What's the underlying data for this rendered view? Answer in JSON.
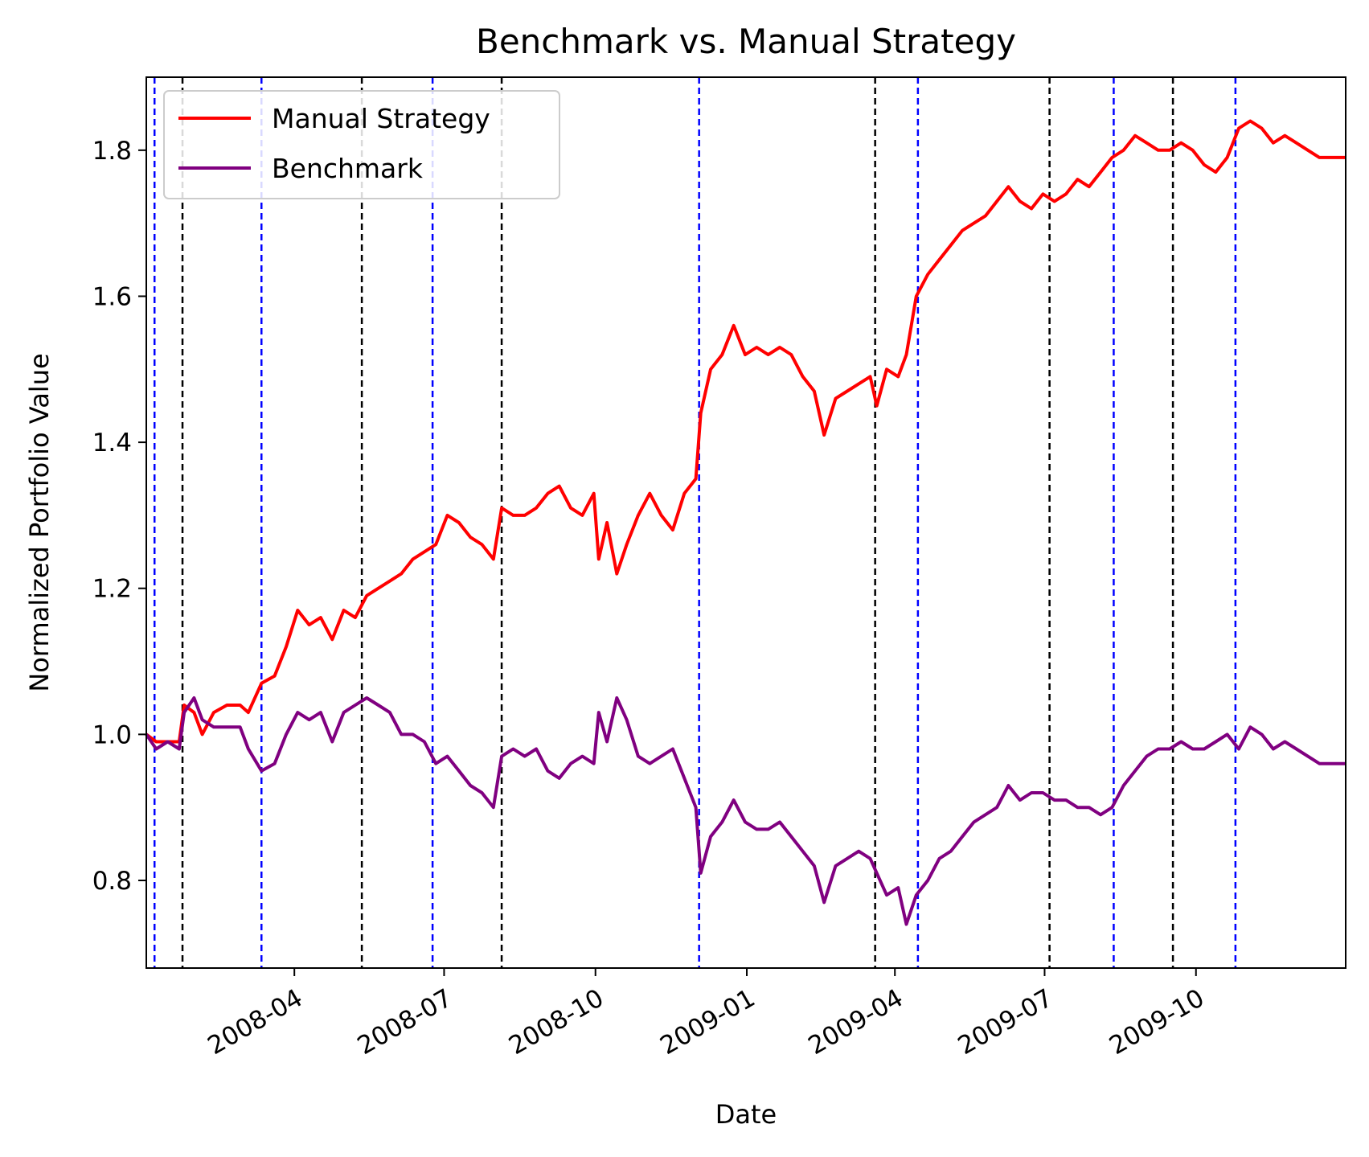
{
  "chart_data": {
    "type": "line",
    "title": "Benchmark vs. Manual Strategy",
    "xlabel": "Date",
    "ylabel": "Normalized Portfolio Value",
    "xlim": [
      "2008-01-02",
      "2009-12-31"
    ],
    "ylim": [
      0.68,
      1.9
    ],
    "grid": false,
    "legend_position": "top-left",
    "x_ticks": [
      "2008-04",
      "2008-07",
      "2008-10",
      "2009-01",
      "2009-04",
      "2009-07",
      "2009-10"
    ],
    "y_ticks": [
      "0.8",
      "1.0",
      "1.2",
      "1.4",
      "1.6",
      "1.8"
    ],
    "series": [
      {
        "name": "Manual Strategy",
        "color": "#ff0000",
        "points": [
          [
            "2008-01-02",
            1.0
          ],
          [
            "2008-01-08",
            0.99
          ],
          [
            "2008-01-15",
            0.99
          ],
          [
            "2008-01-22",
            0.99
          ],
          [
            "2008-01-25",
            1.04
          ],
          [
            "2008-01-31",
            1.03
          ],
          [
            "2008-02-05",
            1.0
          ],
          [
            "2008-02-12",
            1.03
          ],
          [
            "2008-02-20",
            1.04
          ],
          [
            "2008-02-28",
            1.04
          ],
          [
            "2008-03-04",
            1.03
          ],
          [
            "2008-03-12",
            1.07
          ],
          [
            "2008-03-20",
            1.08
          ],
          [
            "2008-03-27",
            1.12
          ],
          [
            "2008-04-03",
            1.17
          ],
          [
            "2008-04-10",
            1.15
          ],
          [
            "2008-04-17",
            1.16
          ],
          [
            "2008-04-24",
            1.13
          ],
          [
            "2008-05-01",
            1.17
          ],
          [
            "2008-05-08",
            1.16
          ],
          [
            "2008-05-15",
            1.19
          ],
          [
            "2008-05-22",
            1.2
          ],
          [
            "2008-05-29",
            1.21
          ],
          [
            "2008-06-05",
            1.22
          ],
          [
            "2008-06-12",
            1.24
          ],
          [
            "2008-06-19",
            1.25
          ],
          [
            "2008-06-26",
            1.26
          ],
          [
            "2008-07-03",
            1.3
          ],
          [
            "2008-07-10",
            1.29
          ],
          [
            "2008-07-17",
            1.27
          ],
          [
            "2008-07-24",
            1.26
          ],
          [
            "2008-07-31",
            1.24
          ],
          [
            "2008-08-05",
            1.31
          ],
          [
            "2008-08-12",
            1.3
          ],
          [
            "2008-08-19",
            1.3
          ],
          [
            "2008-08-26",
            1.31
          ],
          [
            "2008-09-02",
            1.33
          ],
          [
            "2008-09-09",
            1.34
          ],
          [
            "2008-09-16",
            1.31
          ],
          [
            "2008-09-23",
            1.3
          ],
          [
            "2008-09-30",
            1.33
          ],
          [
            "2008-10-03",
            1.24
          ],
          [
            "2008-10-08",
            1.29
          ],
          [
            "2008-10-14",
            1.22
          ],
          [
            "2008-10-20",
            1.26
          ],
          [
            "2008-10-27",
            1.3
          ],
          [
            "2008-11-03",
            1.33
          ],
          [
            "2008-11-10",
            1.3
          ],
          [
            "2008-11-17",
            1.28
          ],
          [
            "2008-11-24",
            1.33
          ],
          [
            "2008-12-01",
            1.35
          ],
          [
            "2008-12-04",
            1.44
          ],
          [
            "2008-12-10",
            1.5
          ],
          [
            "2008-12-17",
            1.52
          ],
          [
            "2008-12-24",
            1.56
          ],
          [
            "2008-12-31",
            1.52
          ],
          [
            "2009-01-07",
            1.53
          ],
          [
            "2009-01-14",
            1.52
          ],
          [
            "2009-01-21",
            1.53
          ],
          [
            "2009-01-28",
            1.52
          ],
          [
            "2009-02-04",
            1.49
          ],
          [
            "2009-02-11",
            1.47
          ],
          [
            "2009-02-17",
            1.41
          ],
          [
            "2009-02-24",
            1.46
          ],
          [
            "2009-03-03",
            1.47
          ],
          [
            "2009-03-10",
            1.48
          ],
          [
            "2009-03-17",
            1.49
          ],
          [
            "2009-03-21",
            1.45
          ],
          [
            "2009-03-27",
            1.5
          ],
          [
            "2009-04-03",
            1.49
          ],
          [
            "2009-04-08",
            1.52
          ],
          [
            "2009-04-14",
            1.6
          ],
          [
            "2009-04-21",
            1.63
          ],
          [
            "2009-04-28",
            1.65
          ],
          [
            "2009-05-05",
            1.67
          ],
          [
            "2009-05-12",
            1.69
          ],
          [
            "2009-05-19",
            1.7
          ],
          [
            "2009-05-26",
            1.71
          ],
          [
            "2009-06-02",
            1.73
          ],
          [
            "2009-06-09",
            1.75
          ],
          [
            "2009-06-16",
            1.73
          ],
          [
            "2009-06-23",
            1.72
          ],
          [
            "2009-06-30",
            1.74
          ],
          [
            "2009-07-07",
            1.73
          ],
          [
            "2009-07-14",
            1.74
          ],
          [
            "2009-07-21",
            1.76
          ],
          [
            "2009-07-28",
            1.75
          ],
          [
            "2009-08-04",
            1.77
          ],
          [
            "2009-08-11",
            1.79
          ],
          [
            "2009-08-18",
            1.8
          ],
          [
            "2009-08-25",
            1.82
          ],
          [
            "2009-09-01",
            1.81
          ],
          [
            "2009-09-08",
            1.8
          ],
          [
            "2009-09-15",
            1.8
          ],
          [
            "2009-09-22",
            1.81
          ],
          [
            "2009-09-29",
            1.8
          ],
          [
            "2009-10-06",
            1.78
          ],
          [
            "2009-10-13",
            1.77
          ],
          [
            "2009-10-20",
            1.79
          ],
          [
            "2009-10-27",
            1.83
          ],
          [
            "2009-11-03",
            1.84
          ],
          [
            "2009-11-10",
            1.83
          ],
          [
            "2009-11-17",
            1.81
          ],
          [
            "2009-11-24",
            1.82
          ],
          [
            "2009-12-01",
            1.81
          ],
          [
            "2009-12-08",
            1.8
          ],
          [
            "2009-12-15",
            1.79
          ],
          [
            "2009-12-22",
            1.79
          ],
          [
            "2009-12-31",
            1.79
          ]
        ]
      },
      {
        "name": "Benchmark",
        "color": "#800080",
        "points": [
          [
            "2008-01-02",
            1.0
          ],
          [
            "2008-01-08",
            0.98
          ],
          [
            "2008-01-15",
            0.99
          ],
          [
            "2008-01-22",
            0.98
          ],
          [
            "2008-01-25",
            1.03
          ],
          [
            "2008-01-31",
            1.05
          ],
          [
            "2008-02-05",
            1.02
          ],
          [
            "2008-02-12",
            1.01
          ],
          [
            "2008-02-20",
            1.01
          ],
          [
            "2008-02-28",
            1.01
          ],
          [
            "2008-03-04",
            0.98
          ],
          [
            "2008-03-12",
            0.95
          ],
          [
            "2008-03-20",
            0.96
          ],
          [
            "2008-03-27",
            1.0
          ],
          [
            "2008-04-03",
            1.03
          ],
          [
            "2008-04-10",
            1.02
          ],
          [
            "2008-04-17",
            1.03
          ],
          [
            "2008-04-24",
            0.99
          ],
          [
            "2008-05-01",
            1.03
          ],
          [
            "2008-05-08",
            1.04
          ],
          [
            "2008-05-15",
            1.05
          ],
          [
            "2008-05-22",
            1.04
          ],
          [
            "2008-05-29",
            1.03
          ],
          [
            "2008-06-05",
            1.0
          ],
          [
            "2008-06-12",
            1.0
          ],
          [
            "2008-06-19",
            0.99
          ],
          [
            "2008-06-26",
            0.96
          ],
          [
            "2008-07-03",
            0.97
          ],
          [
            "2008-07-10",
            0.95
          ],
          [
            "2008-07-17",
            0.93
          ],
          [
            "2008-07-24",
            0.92
          ],
          [
            "2008-07-31",
            0.9
          ],
          [
            "2008-08-05",
            0.97
          ],
          [
            "2008-08-12",
            0.98
          ],
          [
            "2008-08-19",
            0.97
          ],
          [
            "2008-08-26",
            0.98
          ],
          [
            "2008-09-02",
            0.95
          ],
          [
            "2008-09-09",
            0.94
          ],
          [
            "2008-09-16",
            0.96
          ],
          [
            "2008-09-23",
            0.97
          ],
          [
            "2008-09-30",
            0.96
          ],
          [
            "2008-10-03",
            1.03
          ],
          [
            "2008-10-08",
            0.99
          ],
          [
            "2008-10-14",
            1.05
          ],
          [
            "2008-10-20",
            1.02
          ],
          [
            "2008-10-27",
            0.97
          ],
          [
            "2008-11-03",
            0.96
          ],
          [
            "2008-11-10",
            0.97
          ],
          [
            "2008-11-17",
            0.98
          ],
          [
            "2008-11-24",
            0.94
          ],
          [
            "2008-12-01",
            0.9
          ],
          [
            "2008-12-04",
            0.81
          ],
          [
            "2008-12-10",
            0.86
          ],
          [
            "2008-12-17",
            0.88
          ],
          [
            "2008-12-24",
            0.91
          ],
          [
            "2008-12-31",
            0.88
          ],
          [
            "2009-01-07",
            0.87
          ],
          [
            "2009-01-14",
            0.87
          ],
          [
            "2009-01-21",
            0.88
          ],
          [
            "2009-01-28",
            0.86
          ],
          [
            "2009-02-04",
            0.84
          ],
          [
            "2009-02-11",
            0.82
          ],
          [
            "2009-02-17",
            0.77
          ],
          [
            "2009-02-24",
            0.82
          ],
          [
            "2009-03-03",
            0.83
          ],
          [
            "2009-03-10",
            0.84
          ],
          [
            "2009-03-17",
            0.83
          ],
          [
            "2009-03-21",
            0.81
          ],
          [
            "2009-03-27",
            0.78
          ],
          [
            "2009-04-03",
            0.79
          ],
          [
            "2009-04-08",
            0.74
          ],
          [
            "2009-04-14",
            0.78
          ],
          [
            "2009-04-21",
            0.8
          ],
          [
            "2009-04-28",
            0.83
          ],
          [
            "2009-05-05",
            0.84
          ],
          [
            "2009-05-12",
            0.86
          ],
          [
            "2009-05-19",
            0.88
          ],
          [
            "2009-05-26",
            0.89
          ],
          [
            "2009-06-02",
            0.9
          ],
          [
            "2009-06-09",
            0.93
          ],
          [
            "2009-06-16",
            0.91
          ],
          [
            "2009-06-23",
            0.92
          ],
          [
            "2009-06-30",
            0.92
          ],
          [
            "2009-07-07",
            0.91
          ],
          [
            "2009-07-14",
            0.91
          ],
          [
            "2009-07-21",
            0.9
          ],
          [
            "2009-07-28",
            0.9
          ],
          [
            "2009-08-04",
            0.89
          ],
          [
            "2009-08-11",
            0.9
          ],
          [
            "2009-08-18",
            0.93
          ],
          [
            "2009-08-25",
            0.95
          ],
          [
            "2009-09-01",
            0.97
          ],
          [
            "2009-09-08",
            0.98
          ],
          [
            "2009-09-15",
            0.98
          ],
          [
            "2009-09-22",
            0.99
          ],
          [
            "2009-09-29",
            0.98
          ],
          [
            "2009-10-06",
            0.98
          ],
          [
            "2009-10-13",
            0.99
          ],
          [
            "2009-10-20",
            1.0
          ],
          [
            "2009-10-27",
            0.98
          ],
          [
            "2009-11-03",
            1.01
          ],
          [
            "2009-11-10",
            1.0
          ],
          [
            "2009-11-17",
            0.98
          ],
          [
            "2009-11-24",
            0.99
          ],
          [
            "2009-12-01",
            0.98
          ],
          [
            "2009-12-08",
            0.97
          ],
          [
            "2009-12-15",
            0.96
          ],
          [
            "2009-12-22",
            0.96
          ],
          [
            "2009-12-31",
            0.96
          ]
        ]
      }
    ],
    "vertical_lines": [
      {
        "date": "2008-01-07",
        "color": "#0000ff"
      },
      {
        "date": "2008-01-24",
        "color": "#000000"
      },
      {
        "date": "2008-03-12",
        "color": "#0000ff"
      },
      {
        "date": "2008-05-12",
        "color": "#000000"
      },
      {
        "date": "2008-06-24",
        "color": "#0000ff"
      },
      {
        "date": "2008-08-05",
        "color": "#000000"
      },
      {
        "date": "2008-12-03",
        "color": "#0000ff"
      },
      {
        "date": "2009-03-20",
        "color": "#000000"
      },
      {
        "date": "2009-04-15",
        "color": "#0000ff"
      },
      {
        "date": "2009-07-04",
        "color": "#000000"
      },
      {
        "date": "2009-08-12",
        "color": "#0000ff"
      },
      {
        "date": "2009-09-17",
        "color": "#000000"
      },
      {
        "date": "2009-10-25",
        "color": "#0000ff"
      }
    ]
  }
}
